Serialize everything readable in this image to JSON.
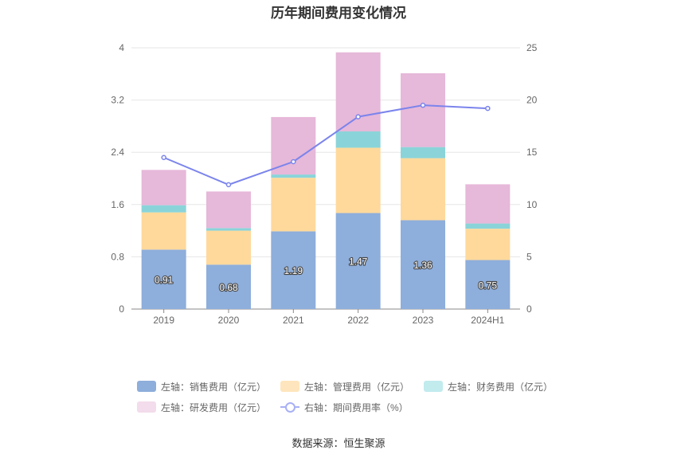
{
  "title": "历年期间费用变化情况",
  "source": "数据来源：恒生聚源",
  "chart_data": {
    "type": "bar",
    "stacked": true,
    "categories": [
      "2019",
      "2020",
      "2021",
      "2022",
      "2023",
      "2024H1"
    ],
    "left_axis": {
      "min": 0,
      "max": 4,
      "ticks": [
        "0",
        "0.8",
        "1.6",
        "2.4",
        "3.2",
        "4"
      ]
    },
    "right_axis": {
      "min": 0,
      "max": 25,
      "ticks": [
        "0",
        "5",
        "10",
        "15",
        "20",
        "25"
      ]
    },
    "series": [
      {
        "name": "左轴：销售费用（亿元）",
        "type": "bar",
        "axis": "left",
        "color": "#8eaedb",
        "values": [
          0.91,
          0.68,
          1.19,
          1.47,
          1.36,
          0.75
        ],
        "labels": [
          "0.91",
          "0.68",
          "1.19",
          "1.47",
          "1.36",
          "0.75"
        ]
      },
      {
        "name": "左轴：管理费用（亿元）",
        "type": "bar",
        "axis": "left",
        "color": "#ffd99b",
        "values": [
          0.57,
          0.52,
          0.82,
          1.0,
          0.95,
          0.48
        ]
      },
      {
        "name": "左轴：财务费用（亿元）",
        "type": "bar",
        "axis": "left",
        "color": "#8ad4d9",
        "values": [
          0.11,
          0.04,
          0.05,
          0.25,
          0.17,
          0.08
        ]
      },
      {
        "name": "左轴：研发费用（亿元）",
        "type": "bar",
        "axis": "left",
        "color": "#e6b8d9",
        "values": [
          0.54,
          0.56,
          0.88,
          1.21,
          1.13,
          0.6
        ]
      },
      {
        "name": "右轴：期间费用率（%）",
        "type": "line",
        "axis": "right",
        "color": "#7b84ec",
        "values": [
          14.5,
          11.9,
          14.1,
          18.4,
          19.5,
          19.2
        ]
      }
    ],
    "legend_position": "bottom",
    "grid": true
  }
}
